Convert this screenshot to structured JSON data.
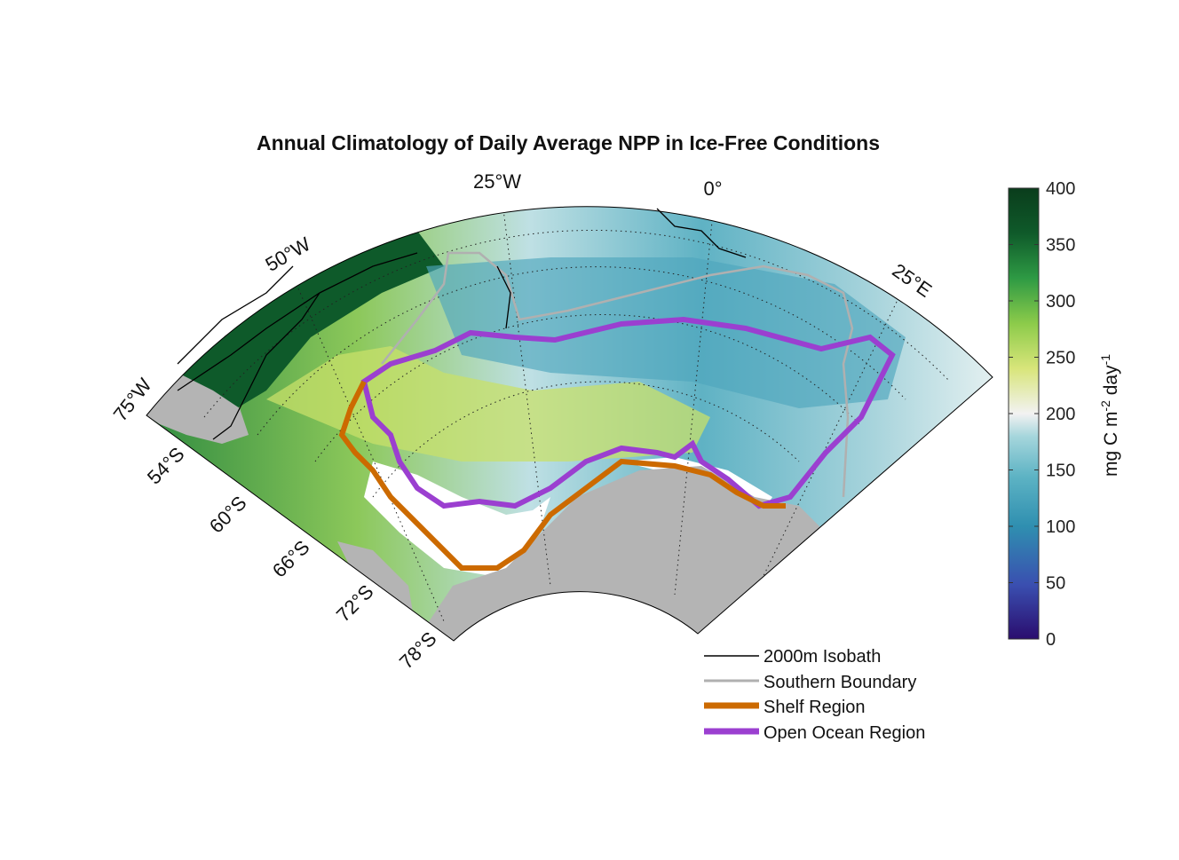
{
  "title": "Annual Climatology of Daily Average NPP in Ice-Free Conditions",
  "longitude_labels": [
    "25°W",
    "0°",
    "50°W",
    "25°E",
    "75°W"
  ],
  "latitude_labels": [
    "54°S",
    "60°S",
    "66°S",
    "72°S",
    "78°S"
  ],
  "colorbar": {
    "label_prefix": "mg C m",
    "label_sup1": "-2",
    "label_mid": " day",
    "label_sup2": "-1",
    "min": 0,
    "max": 400,
    "ticks": [
      "400",
      "350",
      "300",
      "250",
      "200",
      "150",
      "100",
      "50",
      "0"
    ],
    "colors": [
      "#2a0d6e",
      "#3a4fb0",
      "#2f8fb0",
      "#5db3c4",
      "#a6d6dc",
      "#f2f2f2",
      "#d8e57a",
      "#8ccb4a",
      "#2e9a44",
      "#0f5a2a",
      "#0a3d1c"
    ]
  },
  "legend": [
    {
      "label": "2000m Isobath",
      "color": "#000000"
    },
    {
      "label": "Southern Boundary",
      "color": "#b0b0b0"
    },
    {
      "label": "Shelf Region",
      "color": "#cc6a00"
    },
    {
      "label": "Open Ocean Region",
      "color": "#9b3fd0"
    }
  ],
  "colors": {
    "land": "#b4b4b4",
    "ice_free_none": "#ffffff"
  }
}
